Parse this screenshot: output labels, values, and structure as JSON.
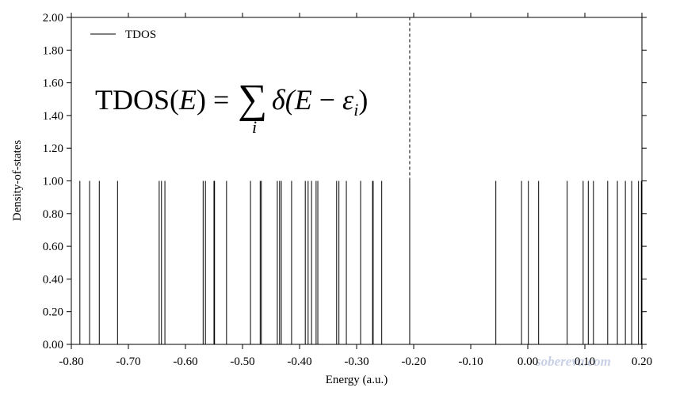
{
  "chart_data": {
    "type": "stick",
    "xlabel": "Energy (a.u.)",
    "ylabel": "Density-of-states",
    "xlim": [
      -0.8,
      0.2
    ],
    "ylim": [
      0,
      2
    ],
    "xticks": [
      {
        "value": -0.8,
        "label": "-0.80"
      },
      {
        "value": -0.7,
        "label": "-0.70"
      },
      {
        "value": -0.6,
        "label": "-0.60"
      },
      {
        "value": -0.5,
        "label": "-0.50"
      },
      {
        "value": -0.4,
        "label": "-0.40"
      },
      {
        "value": -0.3,
        "label": "-0.30"
      },
      {
        "value": -0.2,
        "label": "-0.20"
      },
      {
        "value": -0.1,
        "label": "-0.10"
      },
      {
        "value": 0,
        "label": "0.00"
      },
      {
        "value": 0.1,
        "label": "0.10"
      },
      {
        "value": 0.2,
        "label": "0.20"
      }
    ],
    "yticks": [
      {
        "value": 0,
        "label": "0.00"
      },
      {
        "value": 0.2,
        "label": "0.20"
      },
      {
        "value": 0.4,
        "label": "0.40"
      },
      {
        "value": 0.6,
        "label": "0.60"
      },
      {
        "value": 0.8,
        "label": "0.80"
      },
      {
        "value": 1,
        "label": "1.00"
      },
      {
        "value": 1.2,
        "label": "1.20"
      },
      {
        "value": 1.4,
        "label": "1.40"
      },
      {
        "value": 1.6,
        "label": "1.60"
      },
      {
        "value": 1.8,
        "label": "1.80"
      },
      {
        "value": 2,
        "label": "2.00"
      }
    ],
    "series": [
      {
        "name": "TDOS",
        "color": "#000000",
        "x": [
          -0.785,
          -0.768,
          -0.751,
          -0.719,
          -0.646,
          -0.642,
          -0.636,
          -0.569,
          -0.565,
          -0.55,
          -0.549,
          -0.528,
          -0.486,
          -0.469,
          -0.467,
          -0.439,
          -0.435,
          -0.432,
          -0.414,
          -0.39,
          -0.385,
          -0.379,
          -0.371,
          -0.368,
          -0.335,
          -0.331,
          -0.318,
          -0.293,
          -0.272,
          -0.271,
          -0.256,
          -0.207,
          -0.056,
          -0.011,
          0.001,
          0.019,
          0.069,
          0.097,
          0.106,
          0.115,
          0.14,
          0.157,
          0.171,
          0.182,
          0.194,
          0.199
        ],
        "values": [
          1,
          1,
          1,
          1,
          1,
          1,
          1,
          1,
          1,
          1,
          1,
          1,
          1,
          1,
          1,
          1,
          1,
          1,
          1,
          1,
          1,
          1,
          1,
          1,
          1,
          1,
          1,
          1,
          1,
          1,
          1,
          1,
          1,
          1,
          1,
          1,
          1,
          1,
          1,
          1,
          1,
          1,
          1,
          1,
          1,
          1
        ]
      }
    ],
    "reference_line": {
      "x": -0.207,
      "ylim": [
        1,
        2
      ],
      "style": "dashed"
    },
    "formula": {
      "lhs": "TDOS(",
      "var": "E",
      "mid": ") =",
      "sum": "∑",
      "index": "i",
      "delta": "δ(",
      "var2": "E",
      "minus": " − ",
      "eps": "ε",
      "sub": "i",
      "close": ")"
    },
    "watermark": "sobereva.com",
    "legend": "upper left"
  }
}
